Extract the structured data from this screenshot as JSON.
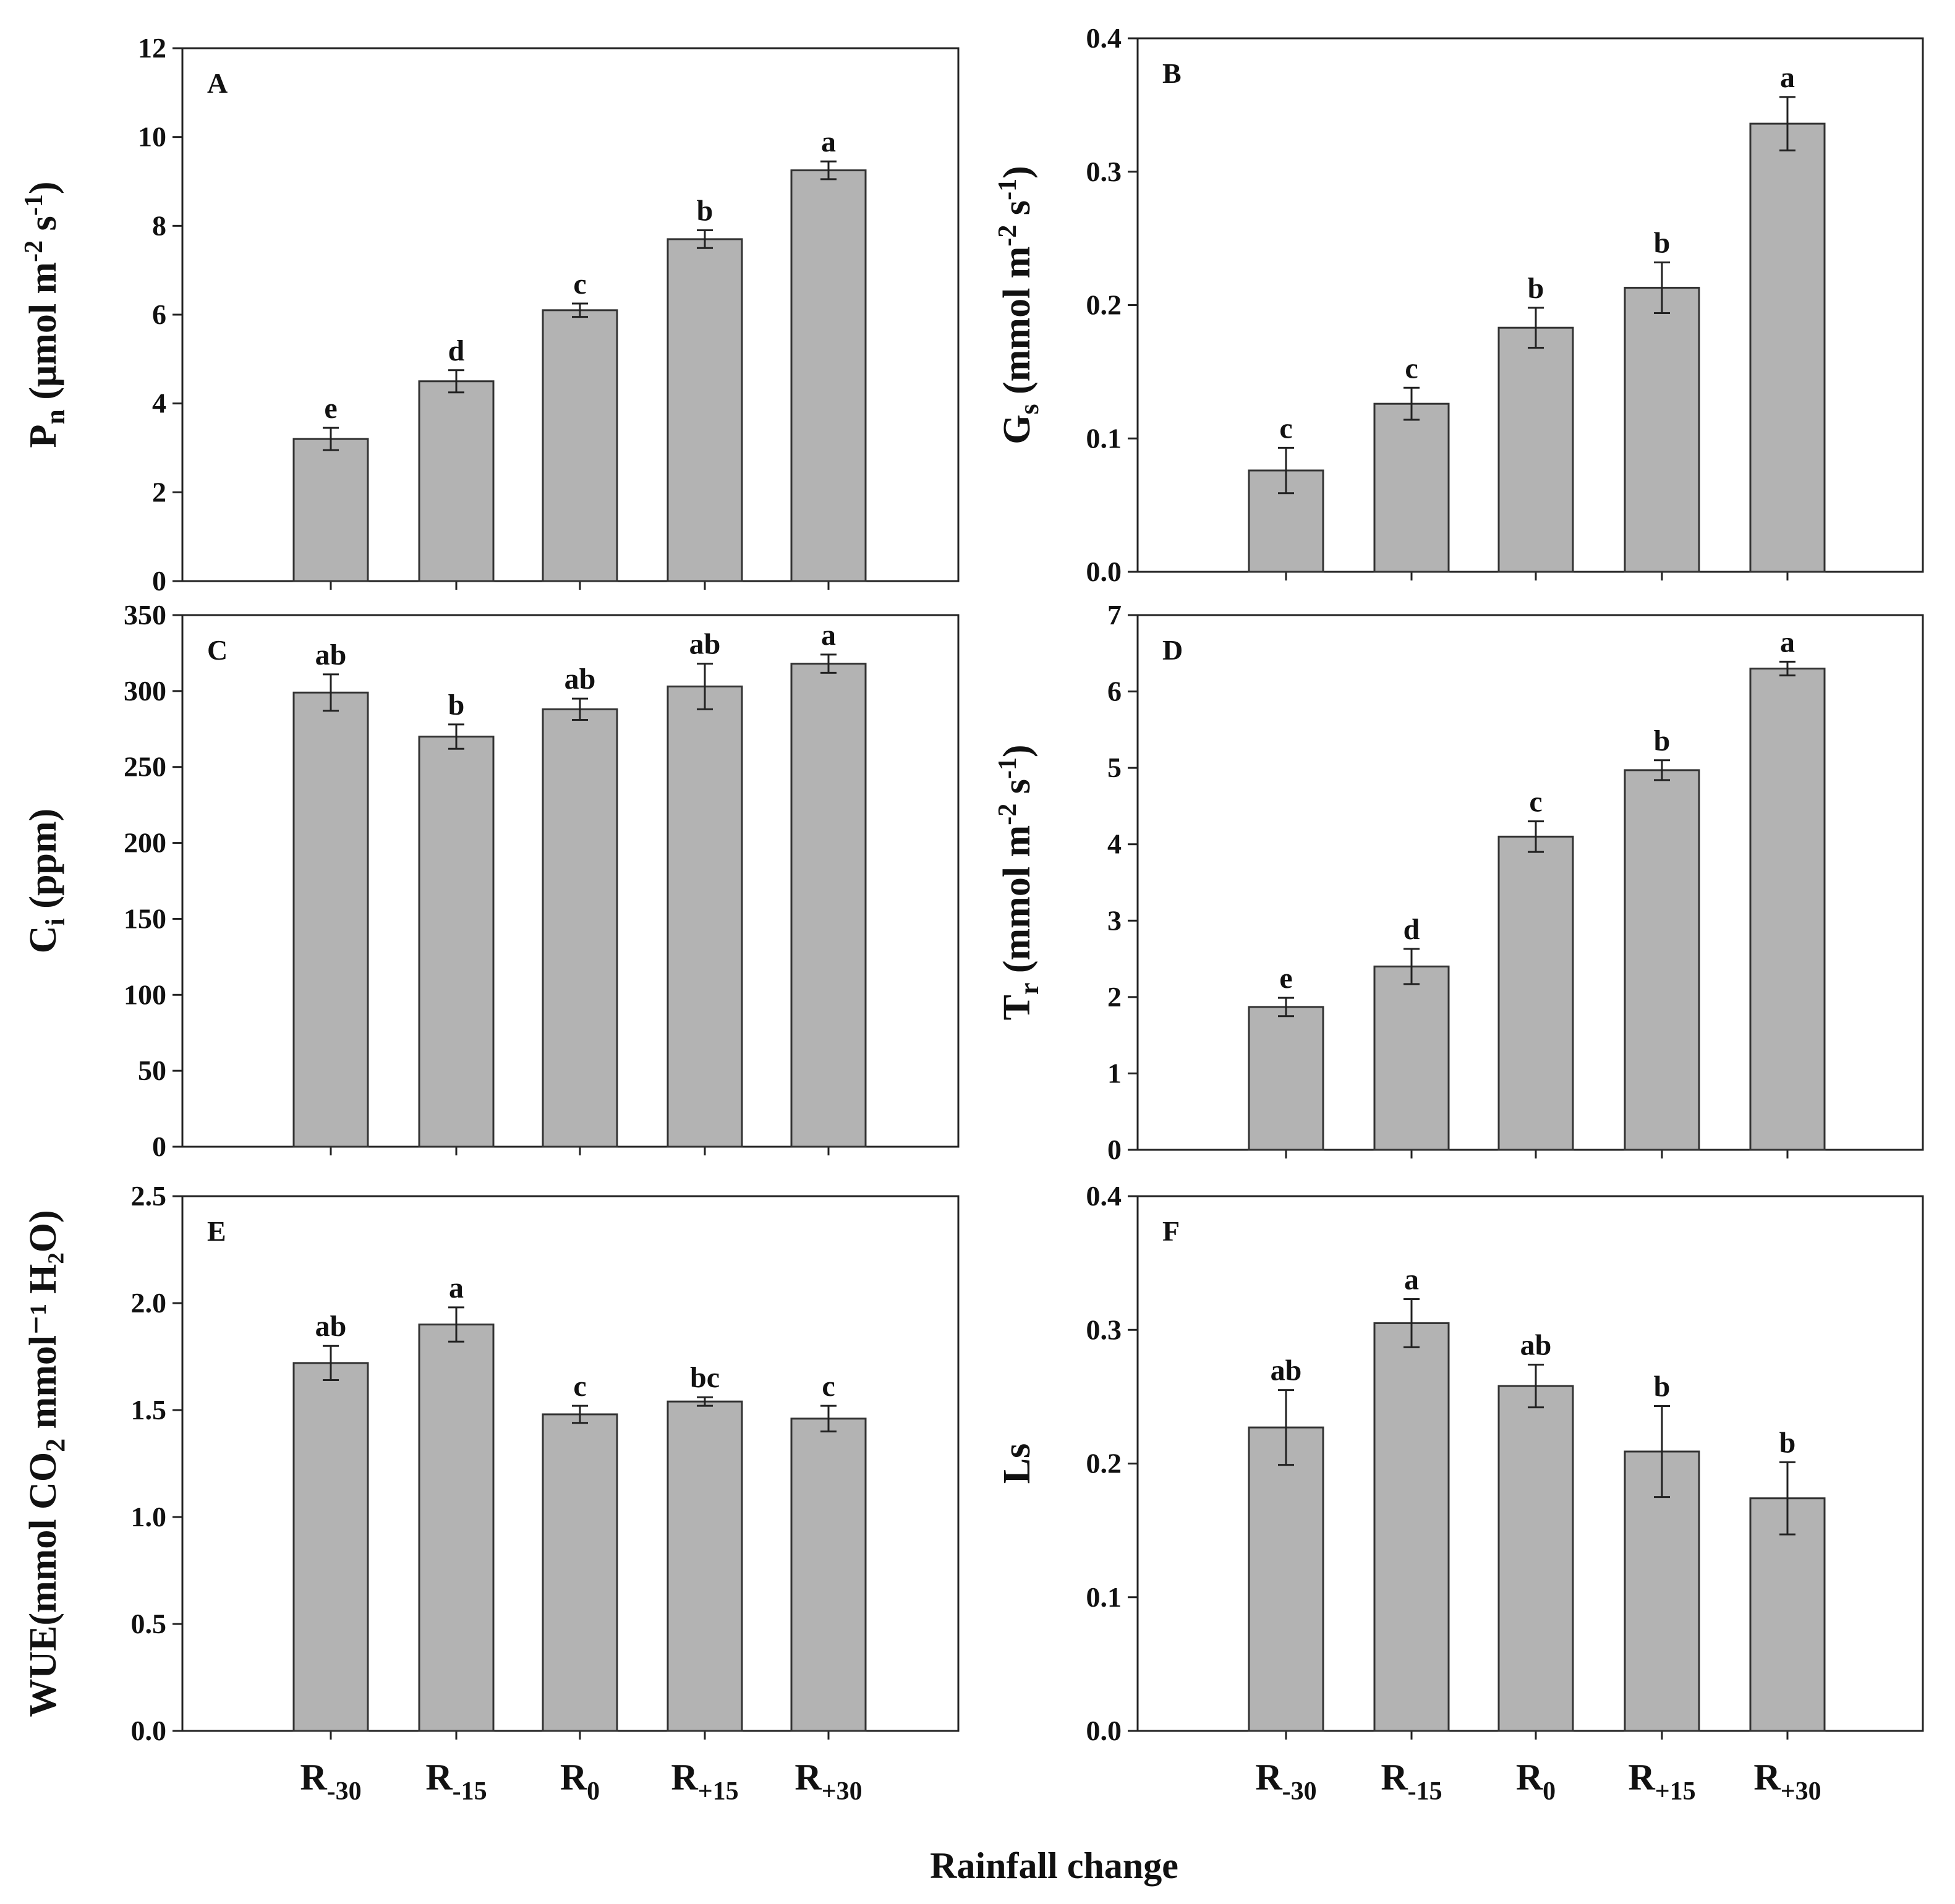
{
  "chart_data": {
    "type": "bar",
    "x_title": "Rainfall change",
    "categories": [
      {
        "base": "R",
        "sub": "-30"
      },
      {
        "base": "R",
        "sub": "-15"
      },
      {
        "base": "R",
        "sub": "0"
      },
      {
        "base": "R",
        "sub": "+15"
      },
      {
        "base": "R",
        "sub": "+30"
      }
    ],
    "panels": [
      {
        "letter": "A",
        "ylabel": {
          "main": "P",
          "sub": "n",
          "rest": " (μmol m",
          "sup1": "-2",
          "mid": " s",
          "sup2": "-1",
          "end": ")"
        },
        "ylim": [
          0,
          12
        ],
        "ticks": [
          0,
          2,
          4,
          6,
          8,
          10,
          12
        ],
        "tick_labels": [
          "0",
          "2",
          "4",
          "6",
          "8",
          "10",
          "12"
        ],
        "values": [
          3.2,
          4.5,
          6.1,
          7.7,
          9.25
        ],
        "errors": [
          0.25,
          0.25,
          0.15,
          0.2,
          0.2
        ],
        "letters": [
          "e",
          "d",
          "c",
          "b",
          "a"
        ]
      },
      {
        "letter": "B",
        "ylabel": {
          "main": "G",
          "sub": "s",
          "rest": " (mmol m",
          "sup1": "-2",
          "mid": " s",
          "sup2": "-1",
          "end": ")"
        },
        "ylim": [
          0,
          0.4
        ],
        "ticks": [
          0,
          0.1,
          0.2,
          0.3,
          0.4
        ],
        "tick_labels": [
          "0.0",
          "0.1",
          "0.2",
          "0.3",
          "0.4"
        ],
        "values": [
          0.076,
          0.126,
          0.183,
          0.213,
          0.336
        ],
        "errors": [
          0.017,
          0.012,
          0.015,
          0.019,
          0.02
        ],
        "letters": [
          "c",
          "c",
          "b",
          "b",
          "a"
        ]
      },
      {
        "letter": "C",
        "ylabel": {
          "main": "C",
          "sub": "i",
          "rest": " (ppm)",
          "sup1": "",
          "mid": "",
          "sup2": "",
          "end": ""
        },
        "ylim": [
          0,
          350
        ],
        "ticks": [
          0,
          50,
          100,
          150,
          200,
          250,
          300,
          350
        ],
        "tick_labels": [
          "0",
          "50",
          "100",
          "150",
          "200",
          "250",
          "300",
          "350"
        ],
        "values": [
          299,
          270,
          288,
          303,
          318
        ],
        "errors": [
          12,
          8,
          7,
          15,
          6
        ],
        "letters": [
          "ab",
          "b",
          "ab",
          "ab",
          "a"
        ]
      },
      {
        "letter": "D",
        "ylabel": {
          "main": "T",
          "sub": "r",
          "rest": " (mmol m",
          "sup1": "-2",
          "mid": " s",
          "sup2": "-1",
          "end": ")"
        },
        "ylim": [
          0,
          7
        ],
        "ticks": [
          0,
          1,
          2,
          3,
          4,
          5,
          6,
          7
        ],
        "tick_labels": [
          "0",
          "1",
          "2",
          "3",
          "4",
          "5",
          "6",
          "7"
        ],
        "values": [
          1.87,
          2.4,
          4.1,
          4.97,
          6.3
        ],
        "errors": [
          0.12,
          0.23,
          0.2,
          0.13,
          0.09
        ],
        "letters": [
          "e",
          "d",
          "c",
          "b",
          "a"
        ]
      },
      {
        "letter": "E",
        "ylabel": {
          "main": "WUE",
          "sub": "",
          "rest": "(mmol CO",
          "sup1": "",
          "mid": "2",
          "sup2": "",
          "end": " mmol⁻¹ H₂O)"
        },
        "ylim": [
          0,
          2.5
        ],
        "ticks": [
          0,
          0.5,
          1.0,
          1.5,
          2.0,
          2.5
        ],
        "tick_labels": [
          "0.0",
          "0.5",
          "1.0",
          "1.5",
          "2.0",
          "2.5"
        ],
        "values": [
          1.72,
          1.9,
          1.48,
          1.54,
          1.46
        ],
        "errors": [
          0.08,
          0.08,
          0.04,
          0.02,
          0.06
        ],
        "letters": [
          "ab",
          "a",
          "c",
          "bc",
          "c"
        ]
      },
      {
        "letter": "F",
        "ylabel": {
          "main": "Ls",
          "sub": "",
          "rest": "",
          "sup1": "",
          "mid": "",
          "sup2": "",
          "end": ""
        },
        "ylim": [
          0,
          0.4
        ],
        "ticks": [
          0,
          0.1,
          0.2,
          0.3,
          0.4
        ],
        "tick_labels": [
          "0.0",
          "0.1",
          "0.2",
          "0.3",
          "0.4"
        ],
        "values": [
          0.227,
          0.305,
          0.258,
          0.209,
          0.174
        ],
        "errors": [
          0.028,
          0.018,
          0.016,
          0.034,
          0.027
        ],
        "letters": [
          "ab",
          "a",
          "ab",
          "b",
          "b"
        ]
      }
    ]
  }
}
